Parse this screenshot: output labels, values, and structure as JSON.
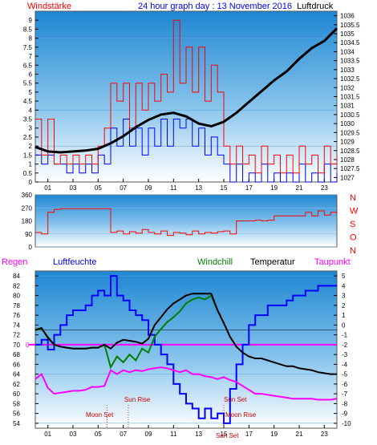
{
  "header": {
    "left_title": "Windstärke",
    "center_title": "24 hour graph day : 13 November 2016",
    "right_title": "Luftdruck"
  },
  "colors": {
    "wind": "#ff0000",
    "gust": "#0000ff",
    "pressure": "#000000",
    "direction": "#ff0000",
    "humidity": "#0000ff",
    "windchill": "#008000",
    "temperature": "#000000",
    "dewpoint": "#ff00ff",
    "rain": "#ff00ff",
    "sky_top": "#1f8fd8",
    "sky_bottom": "#ffffff"
  },
  "x_ticks": [
    "01",
    "03",
    "05",
    "07",
    "09",
    "11",
    "13",
    "15",
    "17",
    "19",
    "21",
    "23"
  ],
  "chart_data": [
    {
      "type": "line",
      "panel": "wind_pressure",
      "left_axis": {
        "label": "Windstärke",
        "ticks": [
          "0",
          "0.5",
          "1",
          "1.5",
          "2",
          "2.5",
          "3",
          "3.5",
          "4",
          "4.5",
          "5",
          "5.5",
          "6",
          "6.5",
          "7",
          "7.5",
          "8",
          "8.5",
          "9"
        ],
        "range": [
          0,
          9.5
        ]
      },
      "right_axis": {
        "label": "Luftdruck",
        "ticks": [
          "1027",
          "1027.5",
          "1028",
          "1028.5",
          "1029",
          "1029.5",
          "1030",
          "1030.5",
          "1031",
          "1031.5",
          "1032",
          "1032.5",
          "1033",
          "1033.5",
          "1034",
          "1034.5",
          "1035",
          "1035.5",
          "1036"
        ],
        "range": [
          1026.75,
          1036.25
        ]
      },
      "x_range": [
        0,
        24
      ],
      "pressure": {
        "x": [
          0,
          1,
          2,
          3,
          4,
          5,
          6,
          7,
          8,
          9,
          10,
          11,
          12,
          13,
          14,
          15,
          16,
          17,
          18,
          19,
          20,
          21,
          22,
          23,
          24
        ],
        "y": [
          1028.7,
          1028.45,
          1028.4,
          1028.45,
          1028.5,
          1028.6,
          1028.9,
          1029.3,
          1029.8,
          1030.2,
          1030.5,
          1030.6,
          1030.4,
          1030.0,
          1029.85,
          1030.1,
          1030.6,
          1031.2,
          1031.8,
          1032.4,
          1032.9,
          1033.6,
          1034.2,
          1034.6,
          1035.3
        ]
      },
      "wind": {
        "x": [
          0,
          0.5,
          1,
          1.5,
          2,
          2.5,
          3,
          3.5,
          4,
          4.5,
          5,
          5.5,
          6,
          6.5,
          7,
          7.5,
          8,
          8.5,
          9,
          9.5,
          10,
          10.5,
          11,
          11.5,
          12,
          12.5,
          13,
          13.5,
          14,
          14.5,
          15,
          15.5,
          16,
          16.5,
          17,
          17.5,
          18,
          18.5,
          19,
          19.5,
          20,
          20.5,
          21,
          21.5,
          22,
          22.5,
          23,
          23.5,
          24
        ],
        "y": [
          3.5,
          1.5,
          3.5,
          1,
          1.5,
          1,
          1.5,
          1,
          1.5,
          1,
          2,
          3,
          5.5,
          4.5,
          5.5,
          3,
          5.5,
          4,
          5.5,
          4.5,
          6,
          5,
          9,
          5.5,
          7.5,
          5,
          7.5,
          4.5,
          6.5,
          5,
          2,
          1,
          2,
          1,
          1.5,
          0.5,
          2,
          1,
          1.5,
          0.5,
          1.5,
          0.5,
          2,
          1,
          1.5,
          0.5,
          2,
          1,
          1.5
        ]
      },
      "gust": {
        "x": [
          0,
          0.5,
          1,
          1.5,
          2,
          2.5,
          3,
          3.5,
          4,
          4.5,
          5,
          5.5,
          6,
          6.5,
          7,
          7.5,
          8,
          8.5,
          9,
          9.5,
          10,
          10.5,
          11,
          11.5,
          12,
          12.5,
          13,
          13.5,
          14,
          14.5,
          15,
          15.5,
          16,
          16.5,
          17,
          17.5,
          18,
          18.5,
          19,
          19.5,
          20,
          20.5,
          21,
          21.5,
          22,
          22.5,
          23,
          23.5,
          24
        ],
        "y": [
          1.5,
          1,
          1.5,
          1,
          1,
          0.5,
          1,
          0.5,
          1,
          0.5,
          1.5,
          1,
          3,
          2,
          3.5,
          2,
          3,
          1.5,
          3,
          2,
          3.5,
          2,
          3.5,
          3,
          3.5,
          2,
          3,
          1.5,
          2.5,
          1.5,
          1,
          0,
          1,
          0,
          0.5,
          0,
          1,
          0,
          0.5,
          0,
          0.5,
          0,
          1,
          0,
          0.5,
          0,
          1,
          0,
          0.5
        ]
      }
    },
    {
      "type": "line",
      "panel": "wind_direction",
      "left_axis": {
        "ticks": [
          "0",
          "90",
          "180",
          "270",
          "360"
        ],
        "range": [
          0,
          360
        ]
      },
      "right_labels": [
        "N",
        "W",
        "S",
        "O",
        "N"
      ],
      "x_range": [
        0,
        24
      ],
      "direction": {
        "x": [
          0,
          0.5,
          1,
          1.5,
          2,
          2.5,
          3,
          3.5,
          4,
          4.5,
          5,
          5.5,
          6,
          6.5,
          7,
          7.5,
          8,
          8.5,
          9,
          9.5,
          10,
          10.5,
          11,
          11.5,
          12,
          12.5,
          13,
          13.5,
          14,
          14.5,
          15,
          15.5,
          16,
          16.5,
          17,
          17.5,
          18,
          18.5,
          19,
          19.5,
          20,
          20.5,
          21,
          21.5,
          22,
          22.5,
          23,
          23.5,
          24
        ],
        "y": [
          100,
          90,
          240,
          260,
          265,
          265,
          265,
          265,
          265,
          265,
          265,
          265,
          100,
          110,
          90,
          105,
          95,
          120,
          100,
          90,
          110,
          80,
          100,
          95,
          85,
          110,
          90,
          100,
          95,
          105,
          110,
          90,
          180,
          180,
          180,
          185,
          180,
          185,
          215,
          215,
          215,
          215,
          215,
          240,
          215,
          250,
          220,
          240,
          225
        ]
      }
    },
    {
      "type": "line",
      "panel": "temperature_humidity",
      "legend": [
        "Regen",
        "Luftfeuchte",
        "Windchill",
        "Temperatur",
        "Taupunkt"
      ],
      "left_axis": {
        "ticks": [
          "54",
          "56",
          "58",
          "60",
          "62",
          "64",
          "66",
          "68",
          "70",
          "72",
          "74",
          "76",
          "78",
          "80",
          "82",
          "84"
        ],
        "range": [
          53,
          85
        ]
      },
      "right_axis": {
        "ticks": [
          "-10",
          "-9",
          "-8",
          "-7",
          "-6",
          "-5",
          "-4",
          "-3",
          "-2",
          "-1",
          "0",
          "1",
          "2",
          "3",
          "4",
          "5"
        ],
        "range": [
          -10.5,
          5.5
        ]
      },
      "rain_axis_label": "0",
      "x_range": [
        0,
        24
      ],
      "humidity": {
        "x": [
          0,
          0.5,
          1,
          1.5,
          2,
          2.5,
          3,
          3.5,
          4,
          4.5,
          5,
          5.5,
          6,
          6.5,
          7,
          7.5,
          8,
          8.5,
          9,
          9.5,
          10,
          10.5,
          11,
          11.5,
          12,
          12.5,
          13,
          13.5,
          14,
          14.5,
          15,
          15.5,
          16,
          16.5,
          17,
          17.5,
          18,
          18.5,
          19,
          19.5,
          20,
          20.5,
          21,
          21.5,
          22,
          22.5,
          23,
          23.5,
          24
        ],
        "y": [
          70,
          71,
          69,
          72,
          74,
          76,
          77,
          77,
          78,
          80,
          81,
          80,
          84,
          80,
          79,
          77,
          76,
          75,
          72,
          70,
          68,
          66,
          62,
          60,
          58,
          57,
          55,
          57,
          55,
          56,
          54,
          61,
          66,
          70,
          74,
          76,
          76,
          78,
          78,
          78,
          79,
          80,
          80,
          81,
          81,
          82,
          82,
          82,
          82
        ]
      },
      "temperature": {
        "x": [
          0,
          0.5,
          1,
          1.5,
          2,
          2.5,
          3,
          3.5,
          4,
          4.5,
          5,
          5.5,
          6,
          6.5,
          7,
          7.5,
          8,
          8.5,
          9,
          9.5,
          10,
          10.5,
          11,
          11.5,
          12,
          12.5,
          13,
          13.5,
          14,
          14.5,
          15,
          15.5,
          16,
          16.5,
          17,
          17.5,
          18,
          18.5,
          19,
          19.5,
          20,
          20.5,
          21,
          21.5,
          22,
          22.5,
          23,
          23.5,
          24
        ],
        "y": [
          -0.5,
          -0.3,
          -1.3,
          -2.0,
          -2.2,
          -2.3,
          -2.4,
          -2.4,
          -2.4,
          -2.3,
          -2.3,
          -2.0,
          -2.4,
          -1.8,
          -1.5,
          -1.6,
          -1.7,
          -1.9,
          -1.4,
          0.0,
          0.8,
          1.6,
          2.2,
          2.6,
          3.0,
          3.2,
          3.2,
          3.2,
          3.2,
          1.5,
          0.2,
          -1.2,
          -2.2,
          -2.8,
          -3.2,
          -3.4,
          -3.4,
          -3.6,
          -3.8,
          -4.0,
          -4.2,
          -4.2,
          -4.4,
          -4.5,
          -4.6,
          -4.8,
          -4.9,
          -5.0,
          -5.0
        ]
      },
      "windchill": {
        "x": [
          0,
          0.5,
          1,
          1.5,
          2,
          2.5,
          3,
          3.5,
          4,
          4.5,
          5,
          5.5,
          6,
          6.5,
          7,
          7.5,
          8,
          8.5,
          9,
          9.5,
          10,
          10.5,
          11,
          11.5,
          12,
          12.5,
          13,
          13.5,
          14,
          14.5,
          15
        ],
        "y": [
          -0.5,
          -0.4,
          -1.2,
          -2.0,
          -2.2,
          -2.3,
          -2.4,
          -2.4,
          -2.4,
          -2.3,
          -2.3,
          -2.0,
          -4.3,
          -3.2,
          -3.8,
          -3.0,
          -3.6,
          -2.4,
          -2.8,
          -1.2,
          -0.4,
          0.3,
          0.8,
          1.4,
          2.2,
          2.6,
          2.8,
          2.6,
          3.0,
          1.5,
          0.2
        ]
      },
      "dewpoint": {
        "x": [
          0,
          0.5,
          1,
          1.5,
          2,
          2.5,
          3,
          3.5,
          4,
          4.5,
          5,
          5.5,
          6,
          6.5,
          7,
          7.5,
          8,
          8.5,
          9,
          9.5,
          10,
          10.5,
          11,
          11.5,
          12,
          12.5,
          13,
          13.5,
          14,
          14.5,
          15,
          15.5,
          16,
          16.5,
          17,
          17.5,
          18,
          18.5,
          19,
          19.5,
          20,
          20.5,
          21,
          21.5,
          22,
          22.5,
          23,
          23.5,
          24
        ],
        "y": [
          -5.5,
          -5.0,
          -6.4,
          -7.0,
          -6.9,
          -6.8,
          -6.7,
          -6.7,
          -6.6,
          -6.3,
          -6.3,
          -6.2,
          -4.6,
          -5.0,
          -4.6,
          -4.8,
          -4.6,
          -4.7,
          -4.5,
          -4.4,
          -4.3,
          -4.4,
          -4.6,
          -4.8,
          -4.6,
          -5.0,
          -5.0,
          -5.2,
          -5.3,
          -5.5,
          -5.3,
          -5.6,
          -5.8,
          -6.2,
          -6.6,
          -7.0,
          -7.0,
          -7.1,
          -7.2,
          -7.3,
          -7.4,
          -7.5,
          -7.5,
          -7.5,
          -7.5,
          -7.6,
          -7.6,
          -7.6,
          -7.5
        ]
      },
      "annotations": [
        {
          "label": "Sun Rise",
          "x": 7.4
        },
        {
          "label": "Moon Set",
          "x": 5.7
        },
        {
          "label": "Sun Set",
          "x": 15.0
        },
        {
          "label": "Moon Rise",
          "x": 15.0
        },
        {
          "label": "Sun Set",
          "x": 15.0
        }
      ]
    }
  ]
}
